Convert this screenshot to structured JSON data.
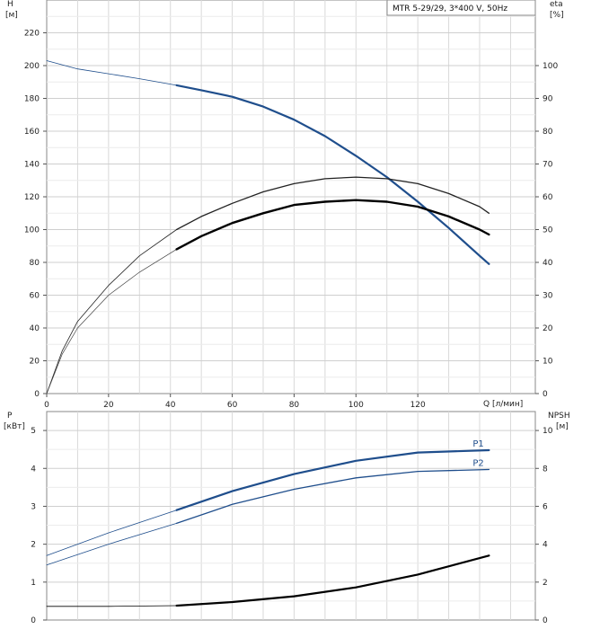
{
  "chart_data": [
    {
      "type": "line",
      "title": "MTR 5-29/29, 3*400 V, 50Hz",
      "xlabel": "Q [л/мин]",
      "ylabel_left": [
        "H",
        "[м]"
      ],
      "ylabel_right": [
        "eta",
        "[%]"
      ],
      "xlim": [
        0,
        158
      ],
      "ylim_left": [
        0,
        240
      ],
      "ylim_right": [
        0,
        120
      ],
      "xticks": [
        0,
        20,
        40,
        60,
        80,
        100,
        120
      ],
      "yticks_left": [
        0,
        20,
        40,
        60,
        80,
        100,
        120,
        140,
        160,
        180,
        200,
        220
      ],
      "yticks_right": [
        0,
        10,
        20,
        30,
        40,
        50,
        60,
        70,
        80,
        90,
        100
      ],
      "grid": true,
      "series": [
        {
          "axis": "left",
          "color": "#1f4e8c",
          "width": 0.8,
          "x": [
            0,
            10,
            20,
            30,
            42
          ],
          "y": [
            203,
            198,
            195,
            192,
            188
          ]
        },
        {
          "axis": "left",
          "color": "#1f4e8c",
          "width": 2.2,
          "x": [
            42,
            50,
            60,
            70,
            80,
            90,
            100,
            110,
            120,
            130,
            140,
            143
          ],
          "y": [
            188,
            185,
            181,
            175,
            167,
            157,
            145,
            132,
            117,
            101,
            84,
            79
          ]
        },
        {
          "axis": "right",
          "color": "#222222",
          "width": 0.8,
          "x": [
            0,
            5,
            10,
            20,
            30,
            42
          ],
          "y": [
            0,
            13,
            22,
            33,
            42,
            50
          ]
        },
        {
          "axis": "right",
          "color": "#222222",
          "width": 1.3,
          "x": [
            42,
            50,
            60,
            70,
            80,
            90,
            100,
            110,
            120,
            130,
            140,
            143
          ],
          "y": [
            50,
            54,
            58,
            61.5,
            64,
            65.5,
            66,
            65.5,
            64,
            61,
            57,
            55
          ]
        },
        {
          "axis": "right",
          "color": "#444444",
          "width": 0.7,
          "x": [
            0,
            5,
            10,
            20,
            30,
            42
          ],
          "y": [
            0,
            12,
            20,
            30,
            37,
            44
          ]
        },
        {
          "axis": "right",
          "color": "#000000",
          "width": 2.4,
          "x": [
            42,
            50,
            60,
            70,
            80,
            90,
            100,
            110,
            120,
            130,
            140,
            143
          ],
          "y": [
            44,
            48,
            52,
            55,
            57.5,
            58.5,
            59,
            58.5,
            57,
            54,
            50,
            48.5
          ]
        }
      ]
    },
    {
      "type": "line",
      "xlim": [
        0,
        158
      ],
      "ylabel_left": [
        "P",
        "[кВт]"
      ],
      "ylabel_right": [
        "NPSH",
        "[м]"
      ],
      "ylim_left": [
        0,
        5.5
      ],
      "ylim_right": [
        0,
        11
      ],
      "yticks_left": [
        0,
        1,
        2,
        3,
        4,
        5
      ],
      "yticks_right": [
        0,
        2,
        4,
        6,
        8,
        10
      ],
      "grid": true,
      "series": [
        {
          "name": "P1",
          "axis": "left",
          "color": "#1f4e8c",
          "width": 0.8,
          "x": [
            0,
            20,
            42
          ],
          "y": [
            1.7,
            2.3,
            2.9
          ]
        },
        {
          "name": "P1",
          "axis": "left",
          "color": "#1f4e8c",
          "width": 2.2,
          "label_at_end": true,
          "x": [
            42,
            60,
            80,
            100,
            120,
            143
          ],
          "y": [
            2.9,
            3.4,
            3.85,
            4.2,
            4.42,
            4.48
          ]
        },
        {
          "name": "P2",
          "axis": "left",
          "color": "#1f4e8c",
          "width": 0.8,
          "x": [
            0,
            20,
            42
          ],
          "y": [
            1.45,
            2.0,
            2.55
          ]
        },
        {
          "name": "P2",
          "axis": "left",
          "color": "#1f4e8c",
          "width": 1.3,
          "label_at_end": true,
          "x": [
            42,
            60,
            80,
            100,
            120,
            143
          ],
          "y": [
            2.55,
            3.05,
            3.45,
            3.75,
            3.92,
            3.97
          ]
        },
        {
          "axis": "right",
          "color": "#000000",
          "width": 0.8,
          "x": [
            0,
            20,
            42
          ],
          "y": [
            0.72,
            0.72,
            0.76
          ]
        },
        {
          "axis": "right",
          "color": "#000000",
          "width": 2.2,
          "x": [
            42,
            60,
            80,
            100,
            120,
            143
          ],
          "y": [
            0.76,
            0.95,
            1.25,
            1.72,
            2.4,
            3.4
          ]
        }
      ]
    }
  ]
}
